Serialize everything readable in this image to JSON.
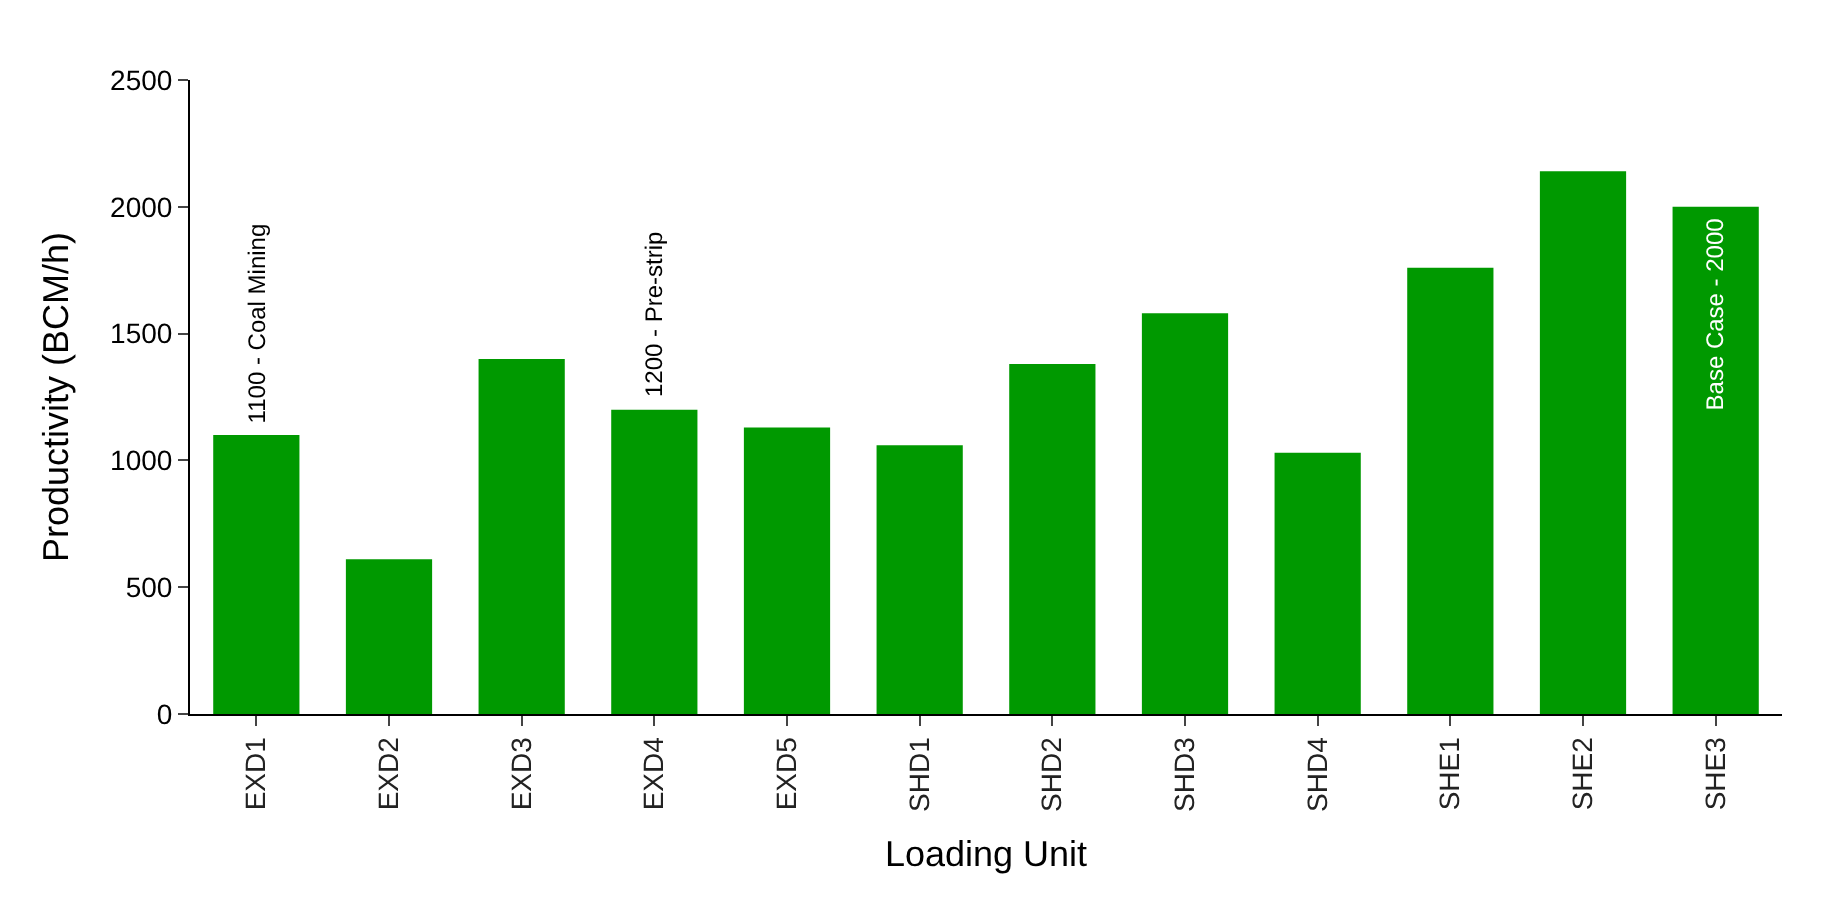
{
  "chart_data": {
    "type": "bar",
    "xlabel": "Loading Unit",
    "ylabel": "Productivity (BCM/h)",
    "categories": [
      "EXD1",
      "EXD2",
      "EXD3",
      "EXD4",
      "EXD5",
      "SHD1",
      "SHD2",
      "SHD3",
      "SHD4",
      "SHE1",
      "SHE2",
      "SHE3"
    ],
    "values": [
      1100,
      610,
      1400,
      1200,
      1130,
      1060,
      1380,
      1580,
      1030,
      1760,
      2140,
      2000
    ],
    "color": "#009900",
    "ylim": [
      0,
      2500
    ],
    "yticks": [
      0,
      500,
      1000,
      1500,
      2000,
      2500
    ],
    "annotations": [
      {
        "text": "1100 - Coal Mining",
        "x": "EXD1",
        "y": 1100
      },
      {
        "text": "1200 - Pre-strip",
        "x": "EXD4",
        "y": 1200
      },
      {
        "text": "Base Case - 2000",
        "x": "SHE3",
        "y": 2000
      }
    ]
  }
}
